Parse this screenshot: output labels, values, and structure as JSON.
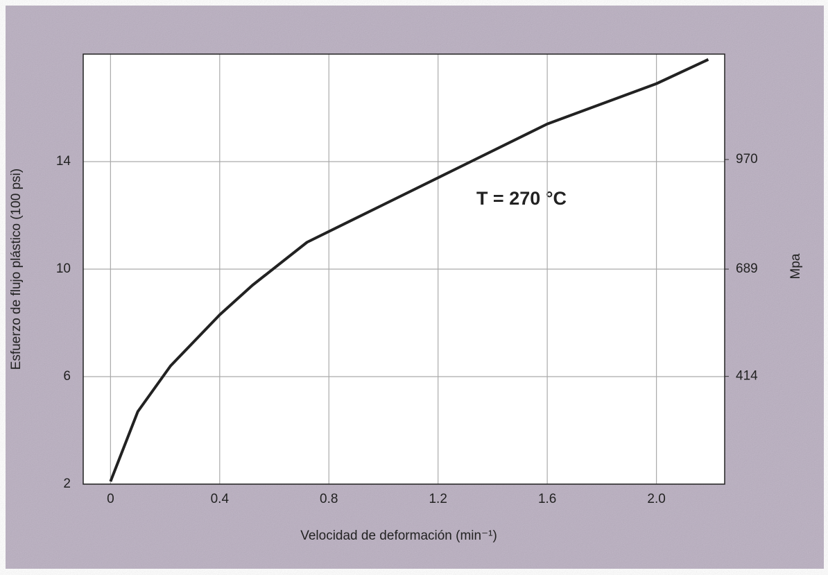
{
  "chart_data": {
    "type": "line",
    "x": [
      0,
      0.1,
      0.22,
      0.4,
      0.52,
      0.72,
      1.0,
      1.3,
      1.6,
      2.0,
      2.19
    ],
    "values": [
      2.1,
      4.7,
      6.4,
      8.3,
      9.4,
      11.0,
      12.4,
      13.9,
      15.4,
      16.9,
      17.8
    ],
    "color": "#222222",
    "xlim": [
      -0.1,
      2.25
    ],
    "xticks": [
      0,
      0.4,
      0.8,
      1.2,
      1.6,
      {
        "value": 2,
        "label": "2.0"
      }
    ],
    "ylim": [
      2,
      18
    ],
    "yticks": [
      2,
      6,
      10,
      14
    ],
    "y2lim": [
      137.8,
      1240.2
    ],
    "y2ticks": [
      414,
      689,
      970
    ],
    "xlabel": "Velocidad de deformación (min⁻¹)",
    "ylabel": "Esfuerzo de flujo plástico (100 psi)",
    "y2label": "Mpa",
    "annotation": "T = 270 °C",
    "grid": true
  }
}
